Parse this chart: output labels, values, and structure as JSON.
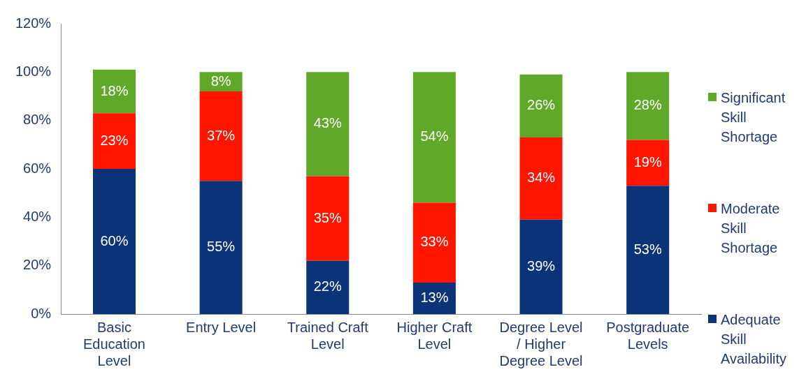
{
  "chart_data": {
    "type": "bar",
    "stacked": true,
    "categories": [
      "Basic Education Level",
      "Entry Level",
      "Trained Craft Level",
      "Higher Craft Level",
      "Degree Level / Higher Degree Level",
      "Postgraduate Levels"
    ],
    "series": [
      {
        "name": "Adequate Skill Availability",
        "color": "#0b3478",
        "values": [
          60,
          55,
          22,
          13,
          39,
          53
        ],
        "value_labels": [
          "60%",
          "55%",
          "22%",
          "13%",
          "39%",
          "53%"
        ]
      },
      {
        "name": "Moderate Skill Shortage",
        "color": "#ff1500",
        "values": [
          23,
          37,
          35,
          33,
          34,
          19
        ],
        "value_labels": [
          "23%",
          "37%",
          "35%",
          "33%",
          "34%",
          "19%"
        ]
      },
      {
        "name": "Significant Skill Shortage",
        "color": "#5fa828",
        "values": [
          18,
          8,
          43,
          54,
          26,
          28
        ],
        "value_labels": [
          "18%",
          "8%",
          "43%",
          "54%",
          "26%",
          "28%"
        ]
      }
    ],
    "ylim": [
      0,
      120
    ],
    "yticks": [
      {
        "value": 0,
        "label": "0%"
      },
      {
        "value": 20,
        "label": "20%"
      },
      {
        "value": 40,
        "label": "40%"
      },
      {
        "value": 60,
        "label": "60%"
      },
      {
        "value": 80,
        "label": "80%"
      },
      {
        "value": 100,
        "label": "100%"
      },
      {
        "value": 120,
        "label": "120%"
      }
    ],
    "grid": false,
    "legend": "right"
  }
}
